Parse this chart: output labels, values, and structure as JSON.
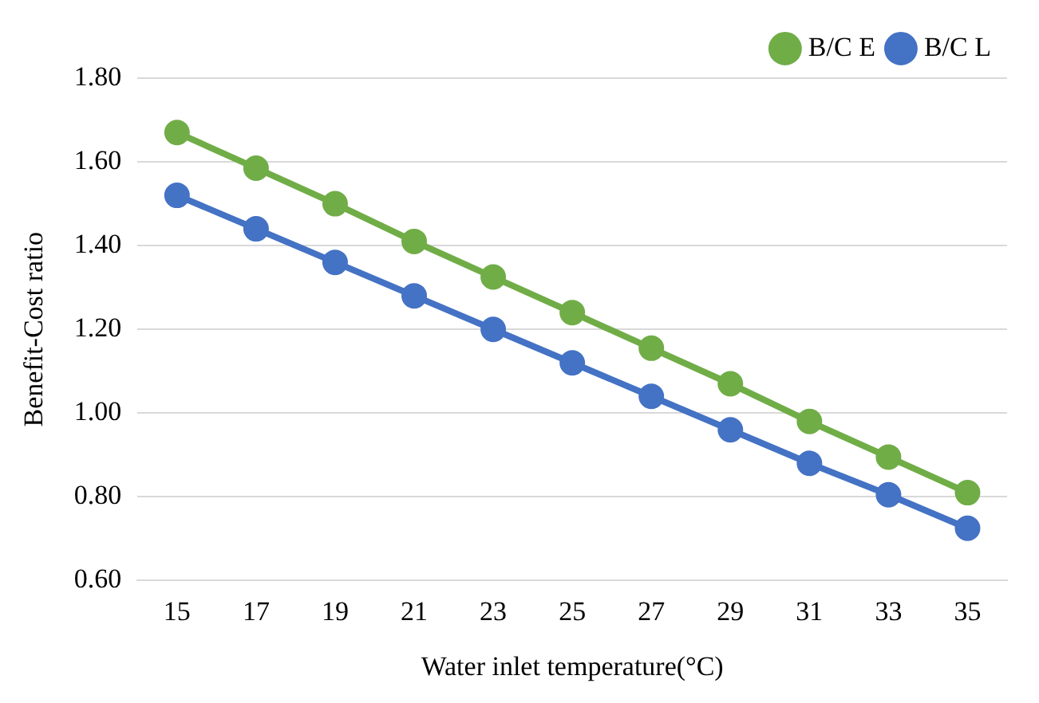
{
  "chart_data": {
    "type": "line",
    "xlabel": "Water inlet temperature(°C)",
    "ylabel": "Benefit-Cost ratio",
    "categories": [
      "15",
      "17",
      "19",
      "21",
      "23",
      "25",
      "27",
      "29",
      "31",
      "33",
      "35"
    ],
    "series": [
      {
        "name": "B/C E",
        "color": "#70ad47",
        "values": [
          1.67,
          1.585,
          1.5,
          1.41,
          1.325,
          1.24,
          1.155,
          1.07,
          0.98,
          0.895,
          0.81
        ]
      },
      {
        "name": "B/C L",
        "color": "#4472c4",
        "values": [
          1.52,
          1.44,
          1.36,
          1.28,
          1.2,
          1.12,
          1.04,
          0.96,
          0.88,
          0.805,
          0.725
        ]
      }
    ],
    "ylim": [
      0.6,
      1.8
    ],
    "yticks": [
      {
        "value": 0.6,
        "label": "0.60"
      },
      {
        "value": 0.8,
        "label": "0.80"
      },
      {
        "value": 1.0,
        "label": "1.00"
      },
      {
        "value": 1.2,
        "label": "1.20"
      },
      {
        "value": 1.4,
        "label": "1.40"
      },
      {
        "value": 1.6,
        "label": "1.60"
      },
      {
        "value": 1.8,
        "label": "1.80"
      }
    ],
    "grid": "y",
    "legend": "top right",
    "marker": "circle",
    "line_style": "solid"
  }
}
